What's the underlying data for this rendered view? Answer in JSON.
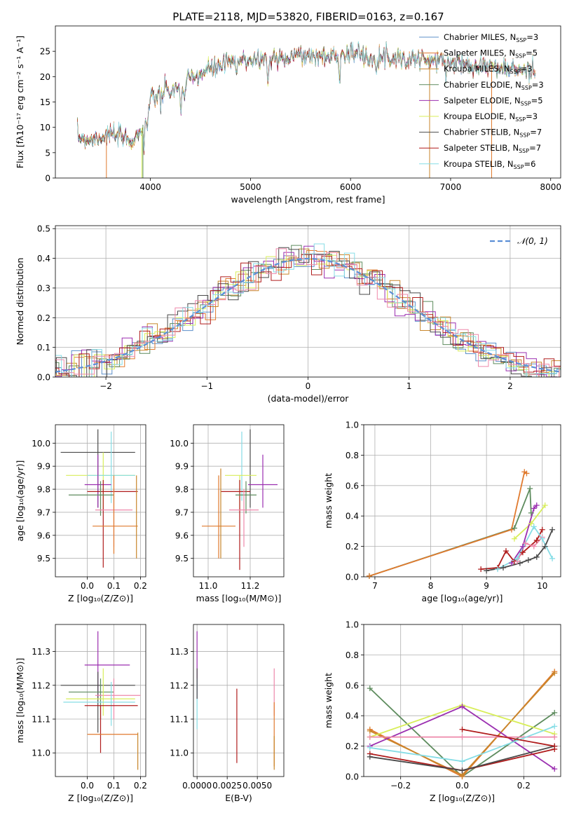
{
  "title": "PLATE=2118, MJD=53820, FIBERID=0163, z=0.167",
  "colors": {
    "Chabrier MILES": "#5b8fc9",
    "Salpeter MILES": "#e07a2e",
    "Kroupa MILES": "#c8862b",
    "Chabrier ELODIE": "#5e8c5e",
    "Salpeter ELODIE": "#9b2fb0",
    "Kroupa ELODIE": "#d8ee5a",
    "Chabrier STELIB": "#4a4a4a",
    "Salpeter STELIB": "#b01c1c",
    "Kroupa STELIB": "#86dde6",
    "pink": "#ee88aa",
    "gauss": "#5b8fd6"
  },
  "chart_data": [
    {
      "id": "spectrum",
      "type": "line",
      "xlabel": "wavelength [Angstrom, rest frame]",
      "ylabel": "Flux [fλ10⁻¹⁷ erg cm⁻² s⁻¹ A⁻¹]",
      "xlim": [
        3050,
        8100
      ],
      "ylim": [
        0,
        30
      ],
      "xticks": [
        4000,
        5000,
        6000,
        7000,
        8000
      ],
      "yticks": [
        0,
        5,
        10,
        15,
        20,
        25
      ],
      "legend_position": "top-right",
      "legend": [
        {
          "label": "Chabrier MILES, N",
          "sub": "SSP",
          "tail": "=3",
          "key": "Chabrier MILES"
        },
        {
          "label": "Salpeter MILES, N",
          "sub": "SSP",
          "tail": "=5",
          "key": "Salpeter MILES"
        },
        {
          "label": "Kroupa MILES, N",
          "sub": "SSP",
          "tail": "=3",
          "key": "Kroupa MILES"
        },
        {
          "label": "Chabrier ELODIE, N",
          "sub": "SSP",
          "tail": "=3",
          "key": "Chabrier ELODIE"
        },
        {
          "label": "Salpeter ELODIE, N",
          "sub": "SSP",
          "tail": "=5",
          "key": "Salpeter ELODIE"
        },
        {
          "label": "Kroupa ELODIE, N",
          "sub": "SSP",
          "tail": "=3",
          "key": "Kroupa ELODIE"
        },
        {
          "label": "Chabrier STELIB, N",
          "sub": "SSP",
          "tail": "=7",
          "key": "Chabrier STELIB"
        },
        {
          "label": "Salpeter STELIB, N",
          "sub": "SSP",
          "tail": "=7",
          "key": "Salpeter STELIB"
        },
        {
          "label": "Kroupa STELIB, N",
          "sub": "SSP",
          "tail": "=6",
          "key": "Kroupa STELIB"
        }
      ],
      "continuum": [
        [
          3270,
          8.2
        ],
        [
          3400,
          7.6
        ],
        [
          3600,
          8.6
        ],
        [
          3700,
          8.0
        ],
        [
          3800,
          7.4
        ],
        [
          3900,
          9.0
        ],
        [
          4000,
          15.0
        ],
        [
          4100,
          17.0
        ],
        [
          4300,
          17.5
        ],
        [
          4400,
          19.5
        ],
        [
          4600,
          21.5
        ],
        [
          4800,
          22.8
        ],
        [
          5000,
          23.4
        ],
        [
          5200,
          23.6
        ],
        [
          5400,
          24.2
        ],
        [
          5600,
          24.0
        ],
        [
          5800,
          23.9
        ],
        [
          6000,
          24.8
        ],
        [
          6200,
          23.8
        ],
        [
          6400,
          23.9
        ],
        [
          6600,
          23.7
        ],
        [
          6800,
          23.1
        ],
        [
          7000,
          22.9
        ],
        [
          7200,
          22.5
        ],
        [
          7400,
          22.0
        ],
        [
          7600,
          21.4
        ],
        [
          7850,
          21.0
        ]
      ]
    },
    {
      "id": "residuals",
      "type": "step",
      "xlabel": "(data-model)/error",
      "ylabel": "Normed distribution",
      "xlim": [
        -2.5,
        2.5
      ],
      "ylim": [
        0,
        0.51
      ],
      "xticks": [
        -2,
        -1,
        0,
        1,
        2
      ],
      "yticks": [
        0.0,
        0.1,
        0.2,
        0.3,
        0.4,
        0.5
      ],
      "grid": true,
      "legend_position": "top-right",
      "gaussian_label": "𝒩(0, 1)"
    },
    {
      "id": "age-vs-Z",
      "type": "errorbar",
      "xlabel": "Z [log₁₀(Z/Z⊙)]",
      "ylabel": "age  [log₁₀(age/yr)]",
      "xlim": [
        -0.12,
        0.22
      ],
      "ylim": [
        9.42,
        10.08
      ],
      "xticks": [
        0.0,
        0.1,
        0.2
      ],
      "yticks": [
        9.5,
        9.6,
        9.7,
        9.8,
        9.9,
        10.0
      ],
      "points": [
        {
          "key": "Chabrier STELIB",
          "x": 0.04,
          "xerr": [
            0.14,
            0.14
          ],
          "y": 9.96,
          "yerr": [
            0.24,
            0.1
          ]
        },
        {
          "key": "Kroupa ELODIE",
          "x": 0.06,
          "xerr": [
            0.14,
            0.12
          ],
          "y": 9.86,
          "yerr": [
            0.15,
            0.1
          ]
        },
        {
          "key": "Kroupa STELIB",
          "x": 0.09,
          "xerr": [
            0.09,
            0.09
          ],
          "y": 9.86,
          "yerr": [
            0.12,
            0.19
          ]
        },
        {
          "key": "Salpeter ELODIE",
          "x": 0.04,
          "xerr": [
            0.05,
            0.05
          ],
          "y": 9.82,
          "yerr": [
            0.1,
            0.13
          ]
        },
        {
          "key": "Salpeter STELIB",
          "x": 0.06,
          "xerr": [
            0.06,
            0.13
          ],
          "y": 9.79,
          "yerr": [
            0.33,
            0.05
          ]
        },
        {
          "key": "Chabrier ELODIE",
          "x": 0.05,
          "xerr": [
            0.12,
            0.05
          ],
          "y": 9.775,
          "yerr": [
            0.09,
            0.06
          ]
        },
        {
          "key": "pink",
          "x": 0.1,
          "xerr": [
            0.07,
            0.07
          ],
          "y": 9.71,
          "yerr": [
            0.16,
            0.09
          ]
        },
        {
          "key": "Salpeter MILES",
          "x": 0.1,
          "xerr": [
            0.08,
            0.09
          ],
          "y": 9.64,
          "yerr": [
            0.12,
            0.22
          ]
        },
        {
          "key": "Kroupa MILES",
          "x": 0.185,
          "xerr": [
            0,
            0
          ],
          "y": 9.69,
          "yerr": [
            0.19,
            0.17
          ]
        }
      ]
    },
    {
      "id": "age-vs-mass",
      "type": "errorbar",
      "xlabel": "mass [log₁₀(M/M⊙)]",
      "ylabel": "",
      "xlim": [
        10.93,
        11.36
      ],
      "ylim": [
        9.42,
        10.08
      ],
      "xticks": [
        11.0,
        11.2
      ],
      "yticks": [
        9.5,
        9.6,
        9.7,
        9.8,
        9.9,
        10.0
      ],
      "points": [
        {
          "key": "Chabrier STELIB",
          "x": 11.2,
          "xerr": [
            0,
            0
          ],
          "y": 9.96,
          "yerr": [
            0.24,
            0.1
          ]
        },
        {
          "key": "Kroupa STELIB",
          "x": 11.16,
          "xerr": [
            0,
            0
          ],
          "y": 9.95,
          "yerr": [
            0.2,
            0.1
          ]
        },
        {
          "key": "Kroupa ELODIE",
          "x": 11.15,
          "xerr": [
            0.07,
            0.08
          ],
          "y": 9.86,
          "yerr": [
            0.15,
            0.0
          ]
        },
        {
          "key": "Salpeter ELODIE",
          "x": 11.26,
          "xerr": [
            0.07,
            0.07
          ],
          "y": 9.82,
          "yerr": [
            0.1,
            0.13
          ]
        },
        {
          "key": "Salpeter STELIB",
          "x": 11.15,
          "xerr": [
            0.09,
            0.05
          ],
          "y": 9.79,
          "yerr": [
            0.34,
            0.05
          ]
        },
        {
          "key": "Chabrier ELODIE",
          "x": 11.18,
          "xerr": [
            0.05,
            0.05
          ],
          "y": 9.775,
          "yerr": [
            0.08,
            0.06
          ]
        },
        {
          "key": "pink",
          "x": 11.17,
          "xerr": [
            0.07,
            0.07
          ],
          "y": 9.71,
          "yerr": [
            0.16,
            0.09
          ]
        },
        {
          "key": "Salpeter MILES",
          "x": 11.05,
          "xerr": [
            0.08,
            0.08
          ],
          "y": 9.64,
          "yerr": [
            0.14,
            0.22
          ]
        },
        {
          "key": "Kroupa MILES",
          "x": 11.06,
          "xerr": [
            0,
            0
          ],
          "y": 9.7,
          "yerr": [
            0.2,
            0.19
          ]
        }
      ]
    },
    {
      "id": "weight-vs-age",
      "type": "line",
      "xlabel": "age  [log₁₀(age/yr)]",
      "ylabel": "mass weight",
      "xlim": [
        6.8,
        10.33
      ],
      "ylim": [
        0,
        1.0
      ],
      "xticks": [
        7,
        8,
        9,
        10
      ],
      "yticks": [
        0.0,
        0.2,
        0.4,
        0.6,
        0.8,
        1.0
      ],
      "series": [
        {
          "key": "Chabrier ELODIE",
          "x": [
            6.9,
            9.5,
            9.78,
            9.8
          ],
          "y": [
            0.005,
            0.32,
            0.58,
            0.42
          ]
        },
        {
          "key": "Salpeter MILES",
          "x": [
            6.9,
            9.45,
            9.68,
            9.72
          ],
          "y": [
            0.005,
            0.31,
            0.69,
            0.68
          ]
        },
        {
          "key": "Kroupa ELODIE",
          "x": [
            9.5,
            9.8,
            10.05
          ],
          "y": [
            0.25,
            0.35,
            0.47
          ]
        },
        {
          "key": "Salpeter ELODIE",
          "x": [
            9.45,
            9.65,
            9.85,
            9.9
          ],
          "y": [
            0.09,
            0.2,
            0.45,
            0.47
          ]
        },
        {
          "key": "Salpeter STELIB",
          "x": [
            8.9,
            9.2,
            9.35,
            9.5,
            9.65,
            9.9,
            10.0
          ],
          "y": [
            0.05,
            0.06,
            0.17,
            0.1,
            0.16,
            0.24,
            0.31
          ]
        },
        {
          "key": "Chabrier STELIB",
          "x": [
            9.0,
            9.3,
            9.6,
            9.75,
            9.9,
            10.05,
            10.18
          ],
          "y": [
            0.04,
            0.06,
            0.09,
            0.11,
            0.13,
            0.2,
            0.31
          ]
        },
        {
          "key": "pink",
          "x": [
            9.55,
            9.7,
            9.85,
            10.0
          ],
          "y": [
            0.1,
            0.22,
            0.2,
            0.26
          ]
        },
        {
          "key": "Kroupa STELIB",
          "x": [
            9.2,
            9.55,
            9.85,
            10.0,
            10.18
          ],
          "y": [
            0.05,
            0.12,
            0.33,
            0.25,
            0.12
          ]
        }
      ]
    },
    {
      "id": "mass-vs-Z",
      "type": "errorbar",
      "xlabel": "Z [log₁₀(Z/Z⊙)]",
      "ylabel": "mass [log₁₀(M/M⊙)]",
      "xlim": [
        -0.12,
        0.22
      ],
      "ylim": [
        10.93,
        11.38
      ],
      "xticks": [
        0.0,
        0.1,
        0.2
      ],
      "yticks": [
        11.0,
        11.1,
        11.2,
        11.3
      ],
      "points": [
        {
          "key": "Salpeter ELODIE",
          "x": 0.04,
          "xerr": [
            0.05,
            0.12
          ],
          "y": 11.26,
          "yerr": [
            0.1,
            0.1
          ]
        },
        {
          "key": "Chabrier STELIB",
          "x": 0.04,
          "xerr": [
            0.14,
            0.14
          ],
          "y": 11.2,
          "yerr": [
            0.14,
            0.04
          ]
        },
        {
          "key": "Chabrier ELODIE",
          "x": 0.05,
          "xerr": [
            0.12,
            0.05
          ],
          "y": 11.18,
          "yerr": [
            0.08,
            0.04
          ]
        },
        {
          "key": "pink",
          "x": 0.1,
          "xerr": [
            0.07,
            0.1
          ],
          "y": 11.17,
          "yerr": [
            0.07,
            0.05
          ]
        },
        {
          "key": "Kroupa ELODIE",
          "x": 0.06,
          "xerr": [
            0.14,
            0.12
          ],
          "y": 11.16,
          "yerr": [
            0.05,
            0.09
          ]
        },
        {
          "key": "Kroupa STELIB",
          "x": 0.09,
          "xerr": [
            0.18,
            0.09
          ],
          "y": 11.15,
          "yerr": [
            0.07,
            0.06
          ]
        },
        {
          "key": "Salpeter STELIB",
          "x": 0.05,
          "xerr": [
            0.06,
            0.14
          ],
          "y": 11.14,
          "yerr": [
            0.14,
            0.0
          ]
        },
        {
          "key": "Salpeter MILES",
          "x": 0.1,
          "xerr": [
            0.1,
            0.09
          ],
          "y": 11.055,
          "yerr": [
            0.0,
            0.0
          ]
        },
        {
          "key": "Kroupa MILES",
          "x": 0.19,
          "xerr": [
            0,
            0
          ],
          "y": 11.0,
          "yerr": [
            0.05,
            0.06
          ]
        }
      ]
    },
    {
      "id": "mass-vs-EBV",
      "type": "errorbar",
      "xlabel": "E(B-V)",
      "ylabel": "",
      "xlim": [
        -0.0003,
        0.0072
      ],
      "ylim": [
        10.93,
        11.38
      ],
      "xticks": [
        0.0,
        0.0025,
        0.005
      ],
      "xticklabels": [
        "0.0000",
        "0.0025",
        "0.0050"
      ],
      "yticks": [
        11.0,
        11.1,
        11.2,
        11.3
      ],
      "points": [
        {
          "key": "Salpeter ELODIE",
          "x": 0.0,
          "xerr": [
            0,
            0
          ],
          "y": 11.26,
          "yerr": [
            0.1,
            0.1
          ]
        },
        {
          "key": "Kroupa STELIB",
          "x": 0.0,
          "xerr": [
            0,
            0
          ],
          "y": 11.15,
          "yerr": [
            0.08,
            0.07
          ]
        },
        {
          "key": "Chabrier STELIB",
          "x": 0.0,
          "xerr": [
            0,
            0
          ],
          "y": 11.2,
          "yerr": [
            0.04,
            0.05
          ]
        },
        {
          "key": "Salpeter STELIB",
          "x": 0.0033,
          "xerr": [
            0,
            0
          ],
          "y": 11.07,
          "yerr": [
            0.1,
            0.12
          ]
        },
        {
          "key": "pink",
          "x": 0.0064,
          "xerr": [
            0,
            0
          ],
          "y": 11.17,
          "yerr": [
            0.06,
            0.08
          ]
        },
        {
          "key": "Salpeter MILES",
          "x": 0.0064,
          "xerr": [
            0,
            0
          ],
          "y": 11.06,
          "yerr": [
            0.1,
            0.09
          ]
        },
        {
          "key": "Kroupa MILES",
          "x": 0.0064,
          "xerr": [
            0,
            0
          ],
          "y": 11.0,
          "yerr": [
            0.05,
            0.05
          ]
        }
      ]
    },
    {
      "id": "weight-vs-Z",
      "type": "line",
      "xlabel": "Z [log₁₀(Z/Z⊙)]",
      "ylabel": "mass weight",
      "xlim": [
        -0.32,
        0.32
      ],
      "ylim": [
        0,
        1.0
      ],
      "xticks": [
        -0.2,
        0.0,
        0.2
      ],
      "xticklabels": [
        "−0.2",
        "0.0",
        "0.2"
      ],
      "yticks": [
        0.0,
        0.2,
        0.4,
        0.6,
        0.8,
        1.0
      ],
      "series": [
        {
          "key": "Chabrier ELODIE",
          "x": [
            -0.3,
            0.0,
            0.3
          ],
          "y": [
            0.58,
            0.0,
            0.42
          ]
        },
        {
          "key": "Salpeter MILES",
          "x": [
            -0.3,
            0.0,
            0.3
          ],
          "y": [
            0.31,
            0.0,
            0.69
          ]
        },
        {
          "key": "Kroupa MILES",
          "x": [
            -0.3,
            0.0,
            0.3
          ],
          "y": [
            0.3,
            0.01,
            0.68
          ]
        },
        {
          "key": "Kroupa ELODIE",
          "x": [
            -0.3,
            0.0,
            0.3
          ],
          "y": [
            0.26,
            0.47,
            0.28
          ]
        },
        {
          "key": "Salpeter ELODIE",
          "x": [
            -0.3,
            0.0,
            0.3
          ],
          "y": [
            0.2,
            0.46,
            0.05
          ]
        },
        {
          "key": "pink",
          "x": [
            -0.3,
            0.0,
            0.3
          ],
          "y": [
            0.26,
            0.26,
            0.26
          ]
        },
        {
          "key": "Kroupa STELIB",
          "x": [
            -0.3,
            0.0,
            0.3
          ],
          "y": [
            0.19,
            0.1,
            0.33
          ]
        },
        {
          "key": "Salpeter STELIB",
          "x": [
            -0.3,
            0.0,
            0.3
          ],
          "y": [
            0.15,
            0.04,
            0.18
          ]
        },
        {
          "key": "Chabrier STELIB",
          "x": [
            -0.3,
            0.0,
            0.3
          ],
          "y": [
            0.13,
            0.04,
            0.2
          ]
        },
        {
          "key": "Salpeter STELIB",
          "x": [
            0.0,
            0.3
          ],
          "y": [
            0.31,
            0.2
          ]
        }
      ]
    }
  ]
}
